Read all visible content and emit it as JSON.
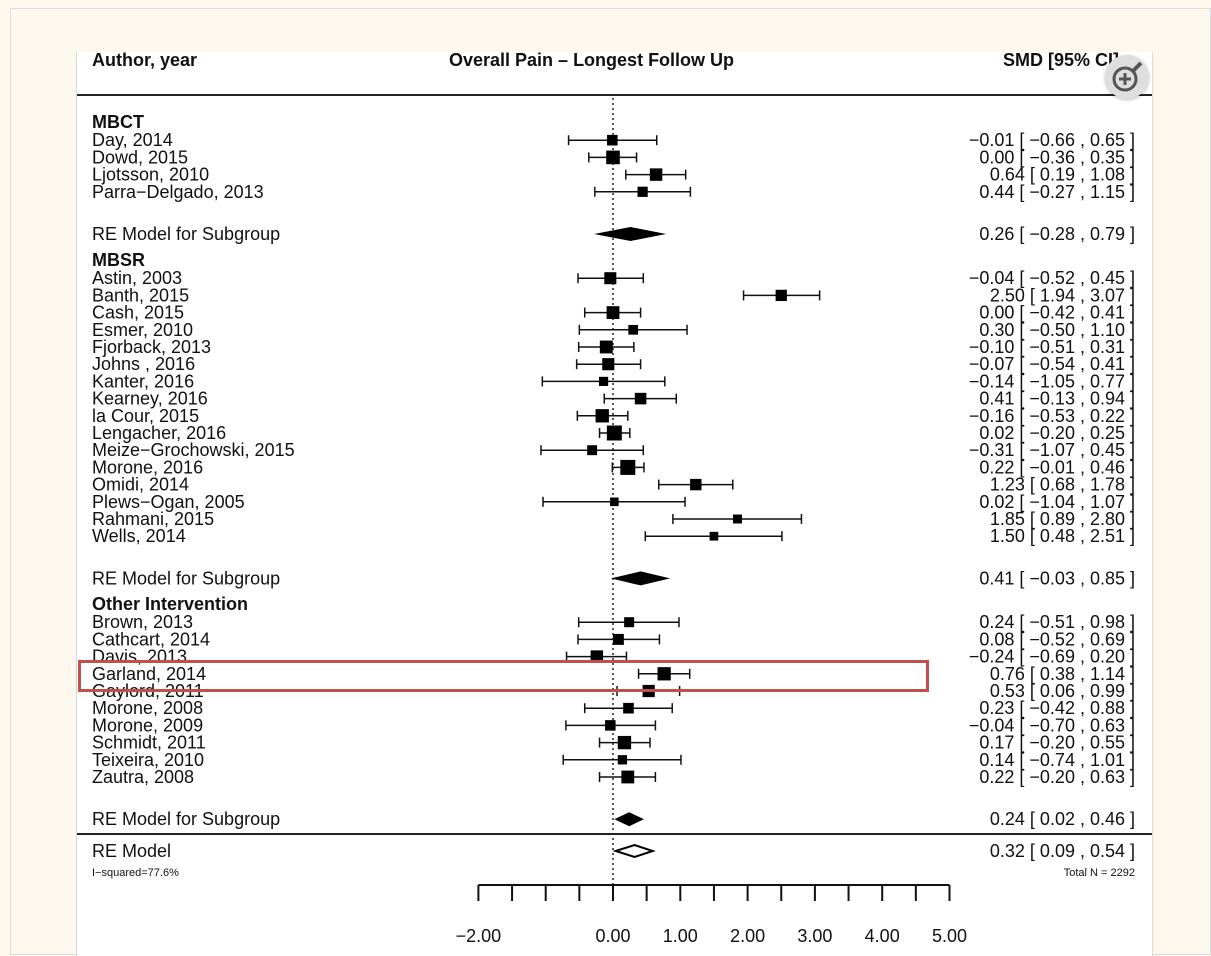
{
  "chart_data": {
    "type": "forest",
    "title": "Overall Pain – Longest Follow Up",
    "col_left": "Author, year",
    "col_right": "SMD [95% CI]",
    "groups": [
      {
        "name": "MBCT",
        "studies": [
          {
            "label": "Day, 2014",
            "est": -0.01,
            "lo": -0.66,
            "hi": 0.65,
            "ci": "−0.01 [ −0.66 , 0.65 ]"
          },
          {
            "label": "Dowd, 2015",
            "est": 0.0,
            "lo": -0.36,
            "hi": 0.35,
            "ci": "0.00 [ −0.36 , 0.35 ]"
          },
          {
            "label": "Ljotsson, 2010",
            "est": 0.64,
            "lo": 0.19,
            "hi": 1.08,
            "ci": "0.64 [ 0.19 , 1.08 ]"
          },
          {
            "label": "Parra−Delgado, 2013",
            "est": 0.44,
            "lo": -0.27,
            "hi": 1.15,
            "ci": "0.44 [ −0.27 , 1.15 ]"
          }
        ],
        "summary": {
          "label": "RE Model for Subgroup",
          "est": 0.26,
          "lo": -0.28,
          "hi": 0.79,
          "ci": "0.26 [ −0.28 , 0.79 ]"
        }
      },
      {
        "name": "MBSR",
        "studies": [
          {
            "label": "Astin, 2003",
            "est": -0.04,
            "lo": -0.52,
            "hi": 0.45,
            "ci": "−0.04 [ −0.52 , 0.45 ]"
          },
          {
            "label": "Banth, 2015",
            "est": 2.5,
            "lo": 1.94,
            "hi": 3.07,
            "ci": "2.50 [ 1.94 , 3.07 ]"
          },
          {
            "label": "Cash, 2015",
            "est": 0.0,
            "lo": -0.42,
            "hi": 0.41,
            "ci": "0.00 [ −0.42 , 0.41 ]"
          },
          {
            "label": "Esmer, 2010",
            "est": 0.3,
            "lo": -0.5,
            "hi": 1.1,
            "ci": "0.30 [ −0.50 , 1.10 ]"
          },
          {
            "label": "Fjorback, 2013",
            "est": -0.1,
            "lo": -0.51,
            "hi": 0.31,
            "ci": "−0.10 [ −0.51 , 0.31 ]"
          },
          {
            "label": "Johns , 2016",
            "est": -0.07,
            "lo": -0.54,
            "hi": 0.41,
            "ci": "−0.07 [ −0.54 , 0.41 ]"
          },
          {
            "label": "Kanter, 2016",
            "est": -0.14,
            "lo": -1.05,
            "hi": 0.77,
            "ci": "−0.14 [ −1.05 , 0.77 ]"
          },
          {
            "label": "Kearney, 2016",
            "est": 0.41,
            "lo": -0.13,
            "hi": 0.94,
            "ci": "0.41 [ −0.13 , 0.94 ]"
          },
          {
            "label": "la Cour, 2015",
            "est": -0.16,
            "lo": -0.53,
            "hi": 0.22,
            "ci": "−0.16 [ −0.53 , 0.22 ]"
          },
          {
            "label": "Lengacher, 2016",
            "est": 0.02,
            "lo": -0.2,
            "hi": 0.25,
            "ci": "0.02 [ −0.20 , 0.25 ]"
          },
          {
            "label": "Meize−Grochowski, 2015",
            "est": -0.31,
            "lo": -1.07,
            "hi": 0.45,
            "ci": "−0.31 [ −1.07 , 0.45 ]"
          },
          {
            "label": "Morone, 2016",
            "est": 0.22,
            "lo": -0.01,
            "hi": 0.46,
            "ci": "0.22 [ −0.01 , 0.46 ]"
          },
          {
            "label": "Omidi, 2014",
            "est": 1.23,
            "lo": 0.68,
            "hi": 1.78,
            "ci": "1.23 [ 0.68 , 1.78 ]"
          },
          {
            "label": "Plews−Ogan, 2005",
            "est": 0.02,
            "lo": -1.04,
            "hi": 1.07,
            "ci": "0.02 [ −1.04 , 1.07 ]"
          },
          {
            "label": "Rahmani, 2015",
            "est": 1.85,
            "lo": 0.89,
            "hi": 2.8,
            "ci": "1.85 [ 0.89 , 2.80 ]"
          },
          {
            "label": "Wells, 2014",
            "est": 1.5,
            "lo": 0.48,
            "hi": 2.51,
            "ci": "1.50 [ 0.48 , 2.51 ]"
          }
        ],
        "summary": {
          "label": "RE Model for Subgroup",
          "est": 0.41,
          "lo": -0.03,
          "hi": 0.85,
          "ci": "0.41 [ −0.03 , 0.85 ]"
        }
      },
      {
        "name": "Other Intervention",
        "studies": [
          {
            "label": "Brown, 2013",
            "est": 0.24,
            "lo": -0.51,
            "hi": 0.98,
            "ci": "0.24 [ −0.51 , 0.98 ]"
          },
          {
            "label": "Cathcart, 2014",
            "est": 0.08,
            "lo": -0.52,
            "hi": 0.69,
            "ci": "0.08 [ −0.52 , 0.69 ]"
          },
          {
            "label": "Davis, 2013",
            "est": -0.24,
            "lo": -0.69,
            "hi": 0.2,
            "ci": "−0.24 [ −0.69 , 0.20 ]"
          },
          {
            "label": "Garland, 2014",
            "est": 0.76,
            "lo": 0.38,
            "hi": 1.14,
            "ci": "0.76 [ 0.38 , 1.14 ]",
            "highlighted": true
          },
          {
            "label": "Gaylord, 2011",
            "est": 0.53,
            "lo": 0.06,
            "hi": 0.99,
            "ci": "0.53 [ 0.06 , 0.99 ]"
          },
          {
            "label": "Morone, 2008",
            "est": 0.23,
            "lo": -0.42,
            "hi": 0.88,
            "ci": "0.23 [ −0.42 , 0.88 ]"
          },
          {
            "label": "Morone, 2009",
            "est": -0.04,
            "lo": -0.7,
            "hi": 0.63,
            "ci": "−0.04 [ −0.70 , 0.63 ]"
          },
          {
            "label": "Schmidt, 2011",
            "est": 0.17,
            "lo": -0.2,
            "hi": 0.55,
            "ci": "0.17 [ −0.20 , 0.55 ]"
          },
          {
            "label": "Teixeira, 2010",
            "est": 0.14,
            "lo": -0.74,
            "hi": 1.01,
            "ci": "0.14 [ −0.74 , 1.01 ]"
          },
          {
            "label": "Zautra, 2008",
            "est": 0.22,
            "lo": -0.2,
            "hi": 0.63,
            "ci": "0.22 [ −0.20 , 0.63 ]"
          }
        ],
        "summary": {
          "label": "RE Model for Subgroup",
          "est": 0.24,
          "lo": 0.02,
          "hi": 0.46,
          "ci": "0.24 [ 0.02 , 0.46 ]"
        }
      }
    ],
    "overall": {
      "label": "RE Model",
      "est": 0.32,
      "lo": 0.09,
      "hi": 0.54,
      "ci": "0.32 [ 0.09 , 0.54 ]"
    },
    "i_squared": "I−squared=77.6%",
    "total_n": "Total N = 2292",
    "xlim": [
      -2,
      5
    ],
    "x_ticks": [
      -2,
      -1.5,
      -1,
      -0.5,
      0,
      0.5,
      1,
      1.5,
      2,
      2.5,
      3,
      3.5,
      4,
      4.5,
      5
    ],
    "x_tick_labels": [
      {
        "value": -2,
        "label": "−2.00"
      },
      {
        "value": 0,
        "label": "0.00"
      },
      {
        "value": 1,
        "label": "1.00"
      },
      {
        "value": 2,
        "label": "2.00"
      },
      {
        "value": 3,
        "label": "3.00"
      },
      {
        "value": 4,
        "label": "4.00"
      },
      {
        "value": 5,
        "label": "5.00"
      }
    ],
    "reference_line": 0,
    "highlight_color": "#c0504d"
  },
  "ui": {
    "zoom_icon": "zoom-in-icon"
  }
}
